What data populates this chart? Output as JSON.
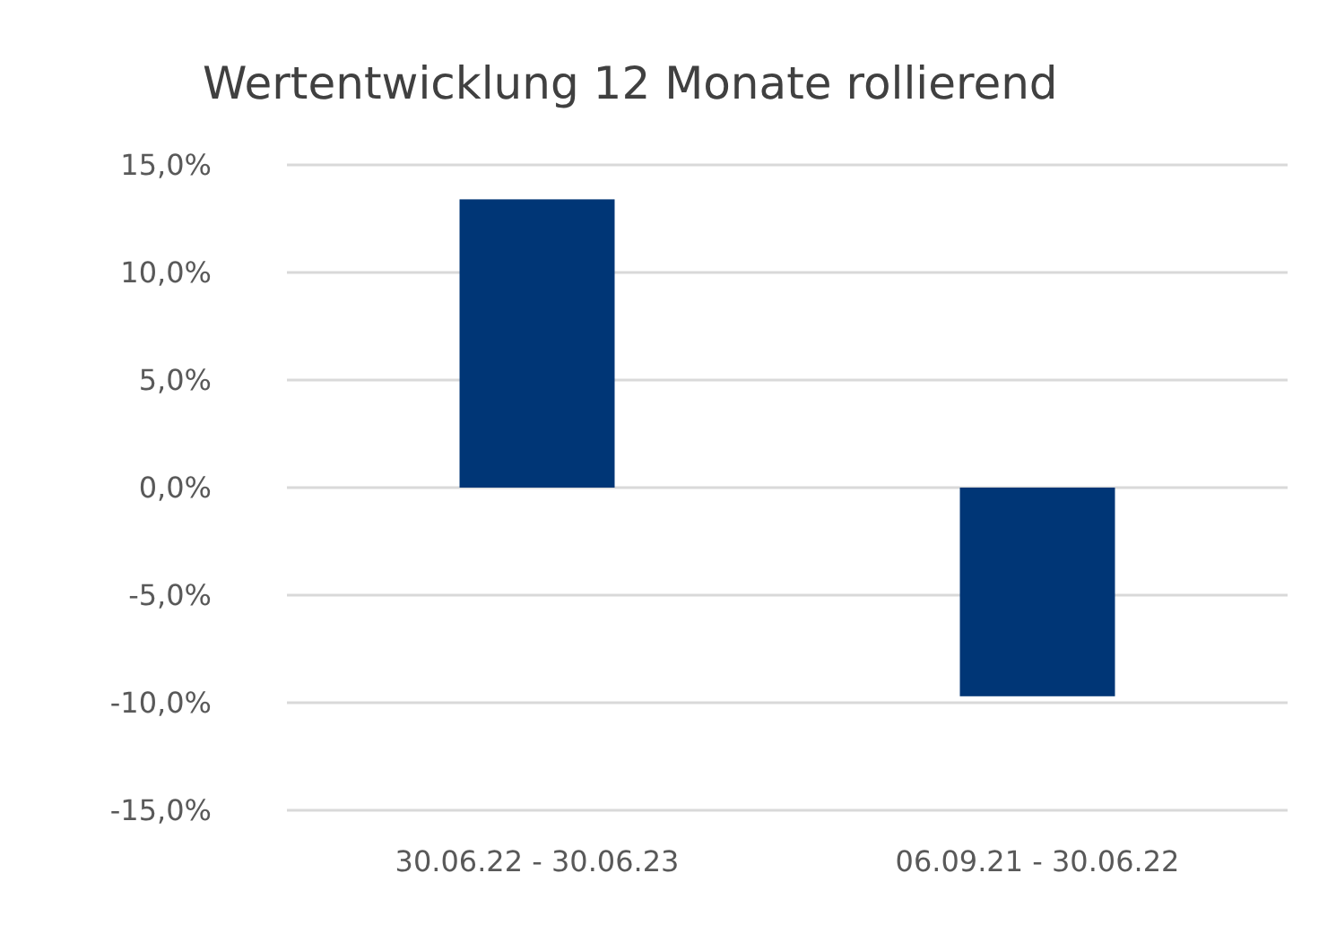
{
  "chart_data": {
    "type": "bar",
    "title": "Wertentwicklung 12 Monate rollierend",
    "categories": [
      "30.06.22 - 30.06.23",
      "06.09.21 - 30.06.22"
    ],
    "values": [
      13.4,
      -9.7
    ],
    "color": "#003676",
    "ylim": [
      -15,
      15
    ],
    "yticks": [
      {
        "value": -15,
        "label": "-15,0%"
      },
      {
        "value": -10,
        "label": "-10,0%"
      },
      {
        "value": -5,
        "label": "-5,0%"
      },
      {
        "value": 0,
        "label": "0,0%"
      },
      {
        "value": 5,
        "label": "5,0%"
      },
      {
        "value": 10,
        "label": "10,0%"
      },
      {
        "value": 15,
        "label": "15,0%"
      }
    ],
    "grid": "y"
  }
}
